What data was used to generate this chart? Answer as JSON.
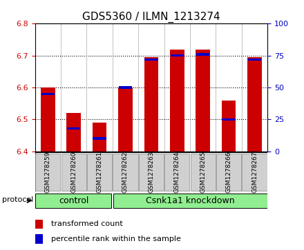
{
  "title": "GDS5360 / ILMN_1213274",
  "samples": [
    "GSM1278259",
    "GSM1278260",
    "GSM1278261",
    "GSM1278262",
    "GSM1278263",
    "GSM1278264",
    "GSM1278265",
    "GSM1278266",
    "GSM1278267"
  ],
  "transformed_counts": [
    6.6,
    6.52,
    6.49,
    6.6,
    6.695,
    6.72,
    6.72,
    6.56,
    6.695
  ],
  "percentile_ranks": [
    45,
    18,
    10,
    50,
    72,
    75,
    76,
    25,
    72
  ],
  "ylim_left": [
    6.4,
    6.8
  ],
  "ylim_right": [
    0,
    100
  ],
  "yticks_left": [
    6.4,
    6.5,
    6.6,
    6.7,
    6.8
  ],
  "yticks_right": [
    0,
    25,
    50,
    75,
    100
  ],
  "bar_color": "#cc0000",
  "bar_base": 6.4,
  "percentile_color": "#0000cc",
  "n_control": 3,
  "n_knockdown": 6,
  "control_label": "control",
  "knockdown_label": "Csnk1a1 knockdown",
  "protocol_label": "protocol",
  "legend_red": "transformed count",
  "legend_blue": "percentile rank within the sample",
  "background_color": "#ffffff",
  "left_tick_color": "#cc0000",
  "right_tick_color": "#0000bb",
  "bar_width": 0.55,
  "sample_box_color": "#d0d0d0",
  "group_green": "#90ee90",
  "title_fontsize": 11
}
